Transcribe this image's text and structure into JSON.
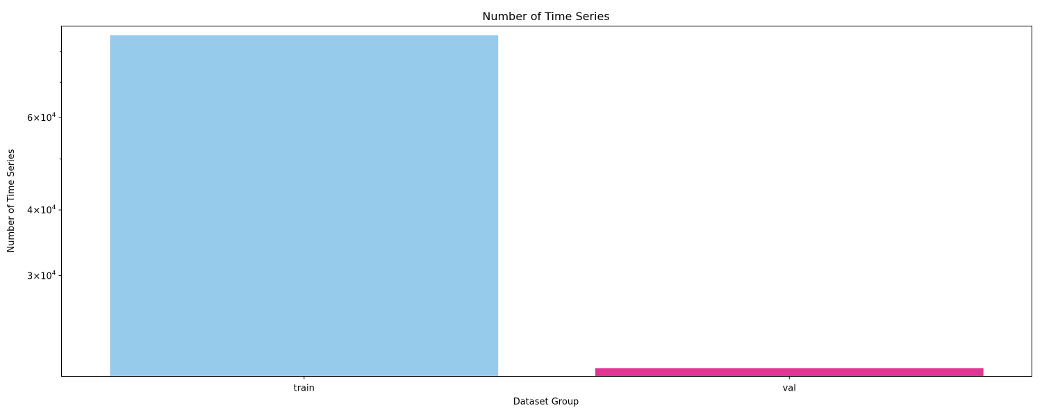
{
  "chart_data": {
    "type": "bar",
    "title": "Number of Time Series",
    "xlabel": "Dataset Group",
    "ylabel": "Number of Time Series",
    "categories": [
      "train",
      "val"
    ],
    "values": [
      86000,
      20000
    ],
    "colors": [
      "#97cbec",
      "#e03693"
    ],
    "yscale": "log",
    "ylim": [
      19300,
      89500
    ],
    "y_major_ticks": [
      {
        "value": 30000,
        "mantissa": "3",
        "base": "10",
        "exp": "4"
      },
      {
        "value": 40000,
        "mantissa": "4",
        "base": "10",
        "exp": "4"
      },
      {
        "value": 60000,
        "mantissa": "6",
        "base": "10",
        "exp": "4"
      }
    ],
    "y_minor_ticks": [
      50000,
      70000,
      80000
    ],
    "grid": false,
    "legend": "none"
  }
}
